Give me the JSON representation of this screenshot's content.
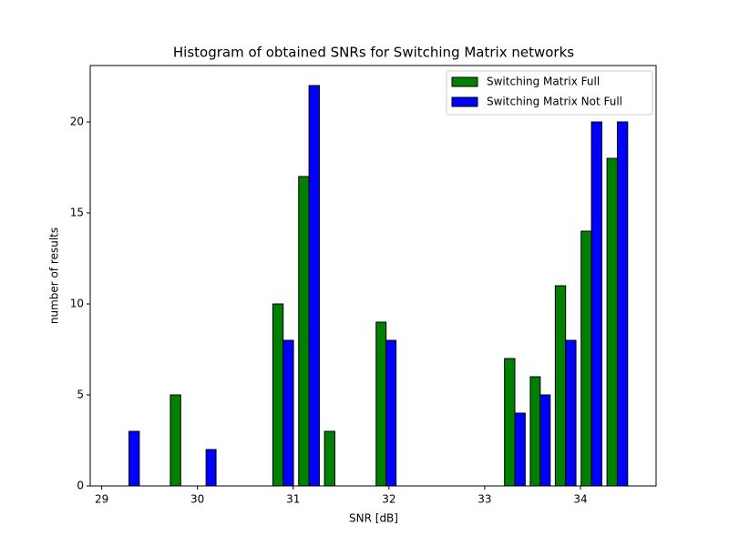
{
  "chart_data": {
    "type": "histogram",
    "title": "Histogram of obtained SNRs for Switching Matrix networks",
    "x_label": "SNR [dB]",
    "y_label": "number of results",
    "bins": [
      29.15,
      29.42,
      29.69,
      29.96,
      30.22,
      30.49,
      30.76,
      31.03,
      31.3,
      31.57,
      31.84,
      32.1,
      32.37,
      32.64,
      32.91,
      33.18,
      33.45,
      33.71,
      33.98,
      34.25,
      34.52
    ],
    "series": [
      {
        "name": "Switching Matrix Full",
        "color": "#008000",
        "values": [
          0,
          0,
          5,
          0,
          0,
          0,
          10,
          17,
          3,
          0,
          9,
          0,
          0,
          0,
          0,
          7,
          6,
          11,
          14,
          18
        ]
      },
      {
        "name": "Switching Matrix Not Full",
        "color": "#0000ff",
        "values": [
          3,
          0,
          0,
          2,
          0,
          0,
          8,
          22,
          0,
          0,
          8,
          0,
          0,
          0,
          0,
          4,
          5,
          8,
          20,
          20
        ]
      }
    ],
    "xlim": [
      28.88,
      34.79
    ],
    "xticks": [
      29,
      30,
      31,
      32,
      33,
      34
    ],
    "ylim": [
      0,
      23.1
    ],
    "yticks": [
      0,
      5,
      10,
      15,
      20
    ],
    "legend": "upper right",
    "edge_color": "#000000"
  }
}
